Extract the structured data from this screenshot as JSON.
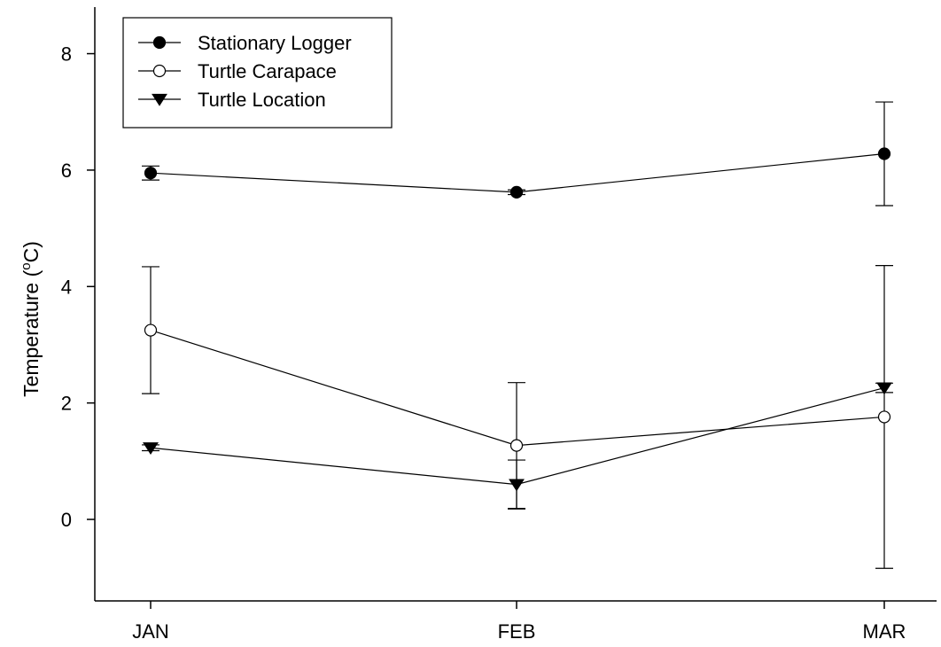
{
  "chart_data": {
    "type": "line",
    "title": "",
    "xlabel": "",
    "ylabel": "Temperature (°C)",
    "ylabel_parts": {
      "before": "Temperature (",
      "sup": "o",
      "after": "C)"
    },
    "categories": [
      "JAN",
      "FEB",
      "MAR"
    ],
    "ylim": [
      -1.4,
      8.8
    ],
    "yticks": [
      0,
      2,
      4,
      6,
      8
    ],
    "grid": false,
    "legend_position": "top-left",
    "series": [
      {
        "name": "Stationary Logger",
        "marker": "filled-circle",
        "values": [
          5.95,
          5.62,
          6.28
        ],
        "errors": [
          0.12,
          0.04,
          0.89
        ]
      },
      {
        "name": "Turtle Carapace",
        "marker": "open-circle",
        "values": [
          3.25,
          1.27,
          1.76
        ],
        "errors": [
          1.09,
          1.08,
          2.6
        ]
      },
      {
        "name": "Turtle Location",
        "marker": "filled-triangle-down",
        "values": [
          1.23,
          0.6,
          2.26
        ],
        "errors": [
          0.05,
          0.42,
          0.08
        ]
      }
    ]
  }
}
